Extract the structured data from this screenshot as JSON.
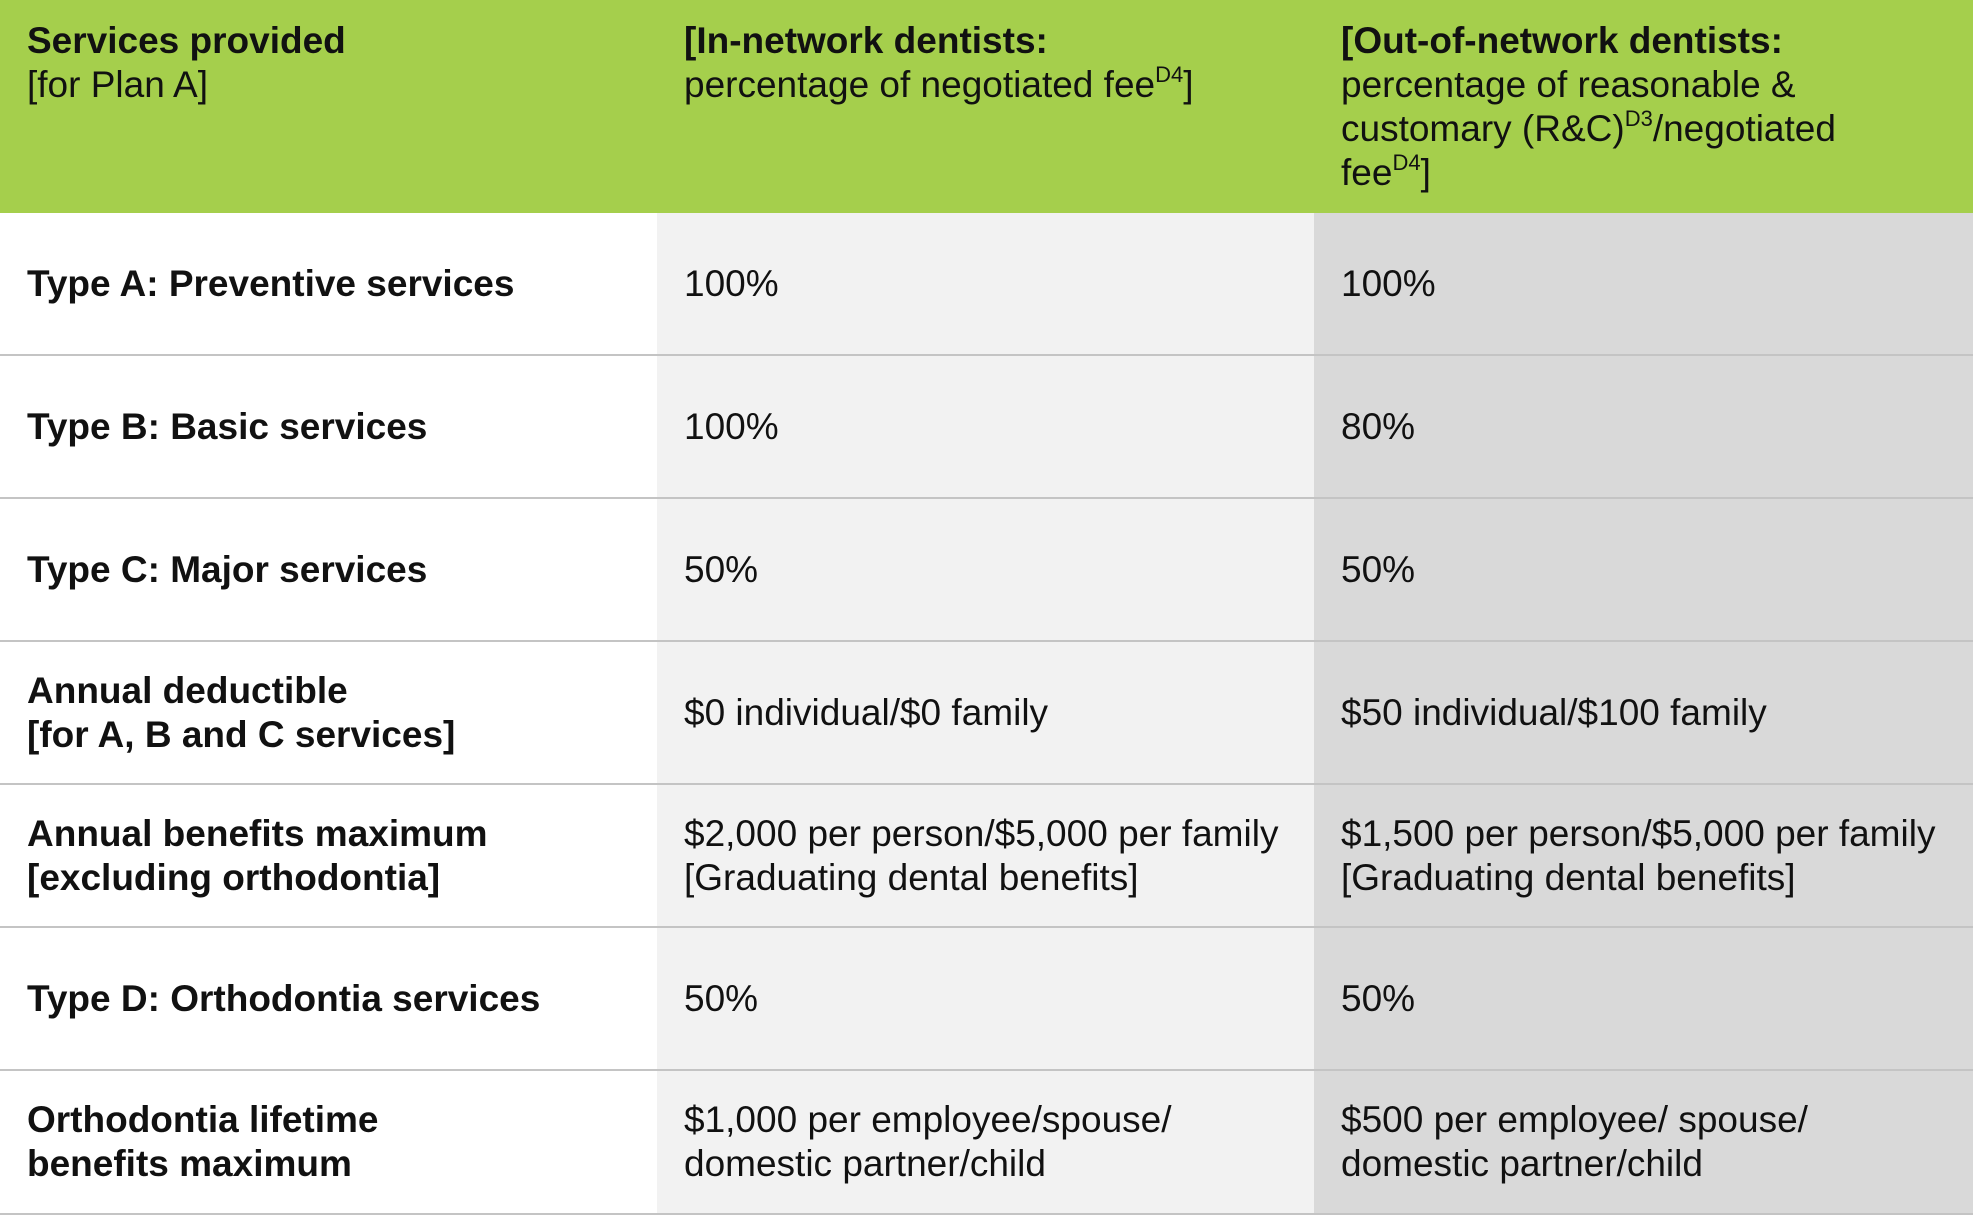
{
  "header": {
    "col1": {
      "title": "Services provided",
      "subtitle": "[for Plan A]"
    },
    "col2": {
      "title": "[In-network dentists:",
      "line1": "percentage of negotiated fee",
      "line1_sup": "D4",
      "line1_end": "]"
    },
    "col3": {
      "title": "[Out-of-network dentists:",
      "line1": "percentage of reasonable &",
      "line2": "customary (R&C)",
      "line2_sup": "D3",
      "line2_end": "/negotiated",
      "line3": "fee",
      "line3_sup": "D4",
      "line3_end": "]"
    }
  },
  "rows": [
    {
      "service": [
        "Type A: Preventive services"
      ],
      "in_network": [
        "100%"
      ],
      "out_network": [
        "100%"
      ]
    },
    {
      "service": [
        "Type B: Basic services"
      ],
      "in_network": [
        "100%"
      ],
      "out_network": [
        "80%"
      ]
    },
    {
      "service": [
        "Type C: Major services"
      ],
      "in_network": [
        "50%"
      ],
      "out_network": [
        "50%"
      ]
    },
    {
      "service": [
        "Annual deductible",
        "[for A, B and C services]"
      ],
      "in_network": [
        "$0 individual/$0 family"
      ],
      "out_network": [
        "$50 individual/$100 family"
      ]
    },
    {
      "service": [
        "Annual benefits maximum",
        "[excluding orthodontia]"
      ],
      "in_network": [
        "$2,000 per person/$5,000 per family",
        "[Graduating dental benefits]"
      ],
      "out_network": [
        "$1,500 per person/$5,000 per family",
        "[Graduating dental benefits]"
      ]
    },
    {
      "service": [
        "Type D: Orthodontia services"
      ],
      "in_network": [
        "50%"
      ],
      "out_network": [
        "50%"
      ]
    },
    {
      "service": [
        "Orthodontia lifetime",
        "benefits maximum"
      ],
      "in_network": [
        "$1,000 per employee/spouse/",
        "domestic partner/child"
      ],
      "out_network": [
        "$500 per employee/ spouse/",
        "domestic partner/child"
      ]
    }
  ],
  "colors": {
    "header_bg": "#a5cf4c",
    "col2_bg": "#f2f2f2",
    "col3_bg": "#d9d9d9",
    "divider": "#c4c4c4"
  }
}
